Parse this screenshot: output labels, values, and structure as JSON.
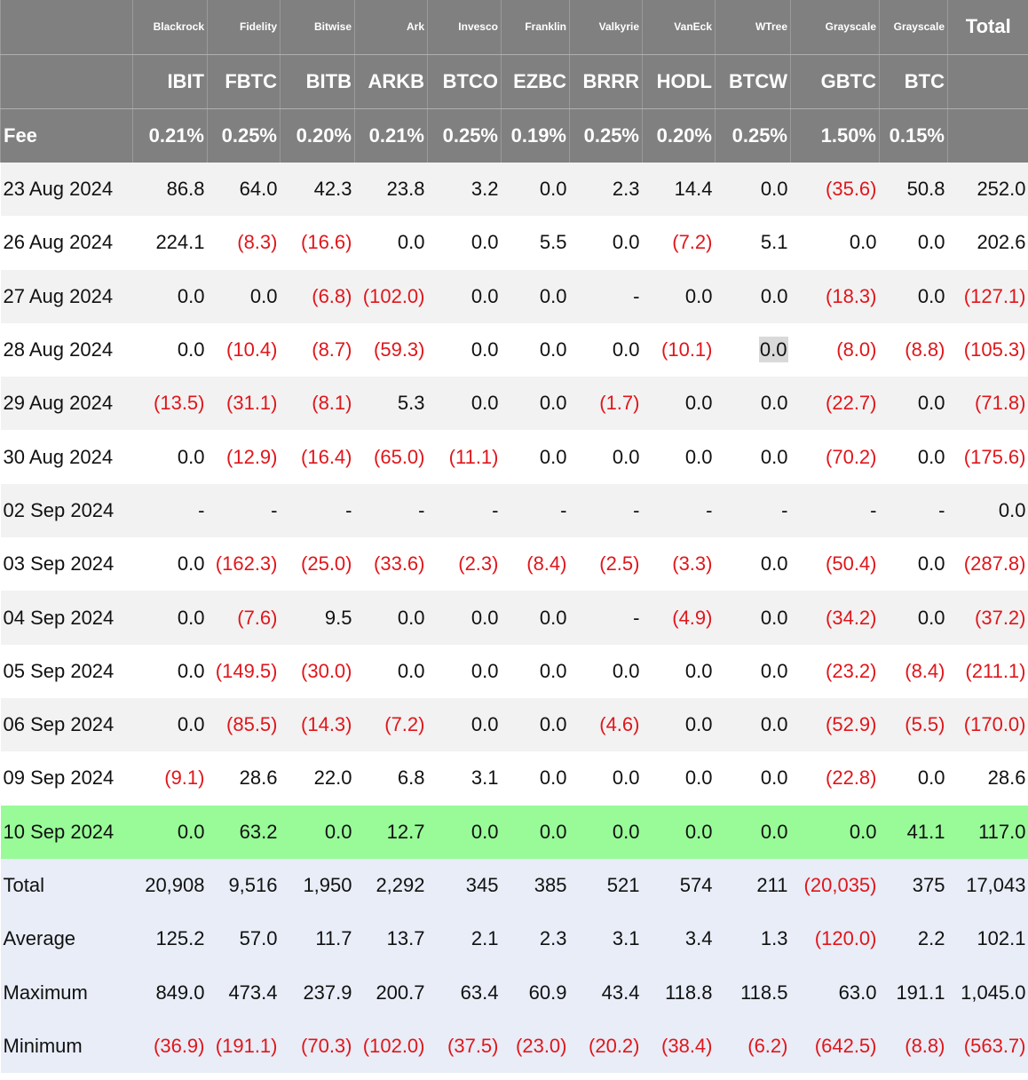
{
  "providers": [
    "Blackrock",
    "Fidelity",
    "Bitwise",
    "Ark",
    "Invesco",
    "Franklin",
    "Valkyrie",
    "VanEck",
    "WTree",
    "Grayscale",
    "Grayscale"
  ],
  "total_header": "Total",
  "tickers": [
    "IBIT",
    "FBTC",
    "BITB",
    "ARKB",
    "BTCO",
    "EZBC",
    "BRRR",
    "HODL",
    "BTCW",
    "GBTC",
    "BTC"
  ],
  "fee_label": "Fee",
  "fees": [
    "0.21%",
    "0.25%",
    "0.20%",
    "0.21%",
    "0.25%",
    "0.19%",
    "0.25%",
    "0.20%",
    "0.25%",
    "1.50%",
    "0.15%"
  ],
  "rows": [
    {
      "date": "23 Aug 2024",
      "values": [
        "86.8",
        "64.0",
        "42.3",
        "23.8",
        "3.2",
        "0.0",
        "2.3",
        "14.4",
        "0.0",
        "(35.6)",
        "50.8"
      ],
      "total": "252.0"
    },
    {
      "date": "26 Aug 2024",
      "values": [
        "224.1",
        "(8.3)",
        "(16.6)",
        "0.0",
        "0.0",
        "5.5",
        "0.0",
        "(7.2)",
        "5.1",
        "0.0",
        "0.0"
      ],
      "total": "202.6"
    },
    {
      "date": "27 Aug 2024",
      "values": [
        "0.0",
        "0.0",
        "(6.8)",
        "(102.0)",
        "0.0",
        "0.0",
        "-",
        "0.0",
        "0.0",
        "(18.3)",
        "0.0"
      ],
      "total": "(127.1)"
    },
    {
      "date": "28 Aug 2024",
      "values": [
        "0.0",
        "(10.4)",
        "(8.7)",
        "(59.3)",
        "0.0",
        "0.0",
        "0.0",
        "(10.1)",
        "0.0",
        "(8.0)",
        "(8.8)"
      ],
      "total": "(105.3)"
    },
    {
      "date": "29 Aug 2024",
      "values": [
        "(13.5)",
        "(31.1)",
        "(8.1)",
        "5.3",
        "0.0",
        "0.0",
        "(1.7)",
        "0.0",
        "0.0",
        "(22.7)",
        "0.0"
      ],
      "total": "(71.8)"
    },
    {
      "date": "30 Aug 2024",
      "values": [
        "0.0",
        "(12.9)",
        "(16.4)",
        "(65.0)",
        "(11.1)",
        "0.0",
        "0.0",
        "0.0",
        "0.0",
        "(70.2)",
        "0.0"
      ],
      "total": "(175.6)"
    },
    {
      "date": "02 Sep 2024",
      "values": [
        "-",
        "-",
        "-",
        "-",
        "-",
        "-",
        "-",
        "-",
        "-",
        "-",
        "-"
      ],
      "total": "0.0"
    },
    {
      "date": "03 Sep 2024",
      "values": [
        "0.0",
        "(162.3)",
        "(25.0)",
        "(33.6)",
        "(2.3)",
        "(8.4)",
        "(2.5)",
        "(3.3)",
        "0.0",
        "(50.4)",
        "0.0"
      ],
      "total": "(287.8)"
    },
    {
      "date": "04 Sep 2024",
      "values": [
        "0.0",
        "(7.6)",
        "9.5",
        "0.0",
        "0.0",
        "0.0",
        "-",
        "(4.9)",
        "0.0",
        "(34.2)",
        "0.0"
      ],
      "total": "(37.2)"
    },
    {
      "date": "05 Sep 2024",
      "values": [
        "0.0",
        "(149.5)",
        "(30.0)",
        "0.0",
        "0.0",
        "0.0",
        "0.0",
        "0.0",
        "0.0",
        "(23.2)",
        "(8.4)"
      ],
      "total": "(211.1)"
    },
    {
      "date": "06 Sep 2024",
      "values": [
        "0.0",
        "(85.5)",
        "(14.3)",
        "(7.2)",
        "0.0",
        "0.0",
        "(4.6)",
        "0.0",
        "0.0",
        "(52.9)",
        "(5.5)"
      ],
      "total": "(170.0)"
    },
    {
      "date": "09 Sep 2024",
      "values": [
        "(9.1)",
        "28.6",
        "22.0",
        "6.8",
        "3.1",
        "0.0",
        "0.0",
        "0.0",
        "0.0",
        "(22.8)",
        "0.0"
      ],
      "total": "28.6"
    },
    {
      "date": "10 Sep 2024",
      "values": [
        "0.0",
        "63.2",
        "0.0",
        "12.7",
        "0.0",
        "0.0",
        "0.0",
        "0.0",
        "0.0",
        "0.0",
        "41.1"
      ],
      "total": "117.0"
    }
  ],
  "stats": [
    {
      "label": "Total",
      "values": [
        "20,908",
        "9,516",
        "1,950",
        "2,292",
        "345",
        "385",
        "521",
        "574",
        "211",
        "(20,035)",
        "375"
      ],
      "total": "17,043"
    },
    {
      "label": "Average",
      "values": [
        "125.2",
        "57.0",
        "11.7",
        "13.7",
        "2.1",
        "2.3",
        "3.1",
        "3.4",
        "1.3",
        "(120.0)",
        "2.2"
      ],
      "total": "102.1"
    },
    {
      "label": "Maximum",
      "values": [
        "849.0",
        "473.4",
        "237.9",
        "200.7",
        "63.4",
        "60.9",
        "43.4",
        "118.8",
        "118.5",
        "63.0",
        "191.1"
      ],
      "total": "1,045.0"
    },
    {
      "label": "Minimum",
      "values": [
        "(36.9)",
        "(191.1)",
        "(70.3)",
        "(102.0)",
        "(37.5)",
        "(23.0)",
        "(20.2)",
        "(38.4)",
        "(6.2)",
        "(642.5)",
        "(8.8)"
      ],
      "total": "(563.7)"
    }
  ],
  "colors": {
    "header": "#808080",
    "negative": "#e0161b",
    "highlight_row": "#98fb98",
    "stats_bg": "#e8edf7"
  }
}
